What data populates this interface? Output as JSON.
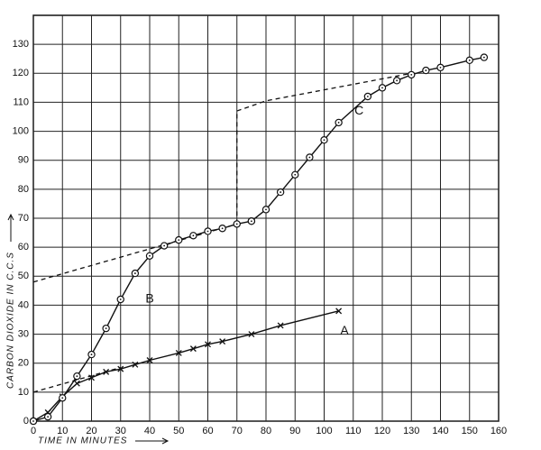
{
  "chart_data": {
    "type": "line",
    "x_label": "TIME IN MINUTES",
    "y_label": "CARBON DIOXIDE IN C.C.S",
    "xlim": [
      0,
      160
    ],
    "xticks": [
      0,
      10,
      20,
      30,
      40,
      50,
      60,
      70,
      80,
      90,
      100,
      110,
      120,
      130,
      140,
      150,
      160
    ],
    "ylim": [
      0,
      140
    ],
    "yticks": [
      0,
      10,
      20,
      30,
      40,
      50,
      60,
      70,
      80,
      90,
      100,
      110,
      120,
      130
    ],
    "grid": true,
    "color": "#111",
    "series": [
      {
        "name": "A",
        "marker": "x",
        "x": [
          0,
          5,
          10,
          15,
          20,
          25,
          30,
          35,
          40,
          50,
          55,
          60,
          65,
          75,
          85,
          105
        ],
        "values": [
          0,
          3,
          8.5,
          13,
          15,
          17,
          18,
          19.5,
          21,
          23.5,
          25,
          26.5,
          27.5,
          30,
          33,
          38
        ]
      },
      {
        "name": "B",
        "marker": "circle",
        "x": [
          0,
          5,
          10,
          15,
          20,
          25,
          30,
          35,
          40,
          45,
          50,
          55,
          60,
          65,
          70,
          75
        ],
        "values": [
          0,
          1.5,
          8,
          15.5,
          23,
          32,
          42,
          51,
          57,
          60.5,
          62.5,
          64,
          65.5,
          66.5,
          68,
          69
        ]
      },
      {
        "name": "C",
        "marker": "circle",
        "x": [
          75,
          80,
          85,
          90,
          95,
          100,
          105,
          115,
          120,
          125,
          130,
          135,
          140,
          150,
          155
        ],
        "values": [
          69,
          73,
          79,
          85,
          91,
          97,
          103,
          112,
          115,
          117.5,
          119.5,
          121,
          122,
          124.5,
          125.5
        ]
      }
    ],
    "reference_lines": [
      {
        "x": [
          0,
          70
        ],
        "values": [
          48,
          68
        ]
      },
      {
        "x": [
          70,
          70
        ],
        "values": [
          68,
          107
        ]
      },
      {
        "x": [
          70,
          80,
          130
        ],
        "values": [
          107,
          110.5,
          120
        ]
      },
      {
        "x": [
          0,
          30
        ],
        "values": [
          10,
          18.5
        ]
      }
    ]
  }
}
